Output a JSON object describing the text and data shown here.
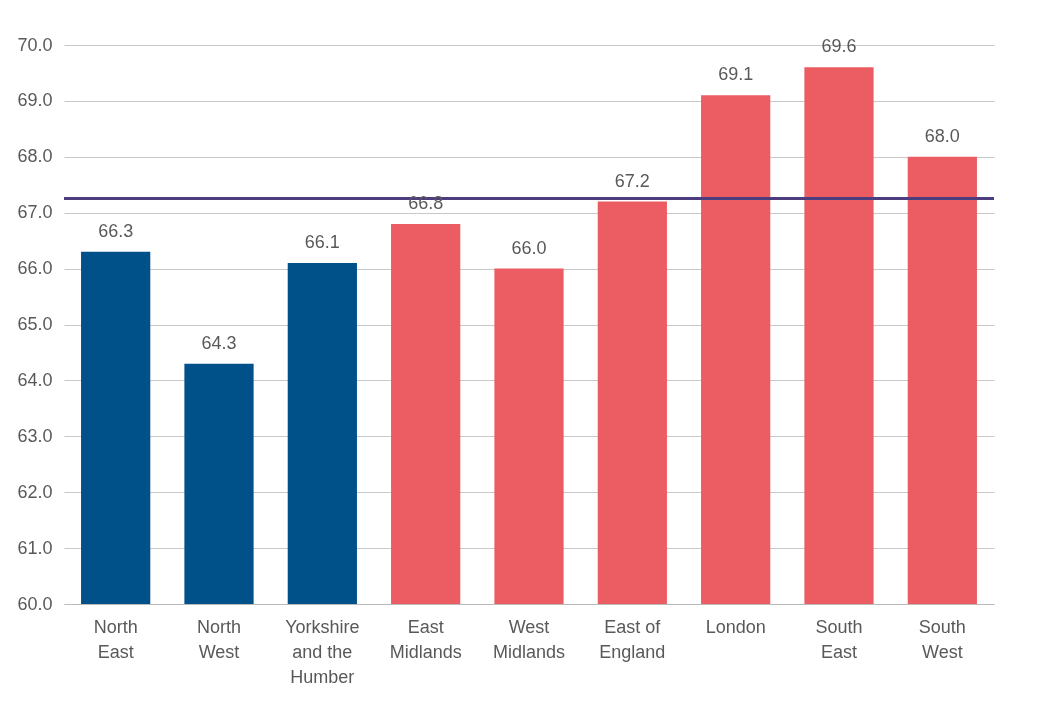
{
  "chart_data": {
    "type": "bar",
    "categories": [
      "North East",
      "North West",
      "Yorkshire and the Humber",
      "East Midlands",
      "West Midlands",
      "East of England",
      "London",
      "South East",
      "South West"
    ],
    "values": [
      66.3,
      64.3,
      66.1,
      66.8,
      66.0,
      67.2,
      69.1,
      69.6,
      68.0
    ],
    "colors": [
      "#00508a",
      "#00508a",
      "#00508a",
      "#ec5c63",
      "#ec5c63",
      "#ec5c63",
      "#ec5c63",
      "#ec5c63",
      "#ec5c63"
    ],
    "ylim": [
      60,
      70
    ],
    "yticks": [
      {
        "value": 60,
        "label": "60.0"
      },
      {
        "value": 61,
        "label": "61.0"
      },
      {
        "value": 62,
        "label": "62.0"
      },
      {
        "value": 63,
        "label": "63.0"
      },
      {
        "value": 64,
        "label": "64.0"
      },
      {
        "value": 65,
        "label": "65.0"
      },
      {
        "value": 66,
        "label": "66.0"
      },
      {
        "value": 67,
        "label": "67.0"
      },
      {
        "value": 68,
        "label": "68.0"
      },
      {
        "value": 69,
        "label": "69.0"
      },
      {
        "value": 70,
        "label": "70.0"
      }
    ],
    "ref_lines": [
      {
        "axis": "y",
        "value": 67.25,
        "color": "#4c3d7e"
      }
    ],
    "value_labels": [
      "66.3",
      "64.3",
      "66.1",
      "66.8",
      "66.0",
      "67.2",
      "69.1",
      "69.6",
      "68.0"
    ],
    "grid": "y"
  }
}
